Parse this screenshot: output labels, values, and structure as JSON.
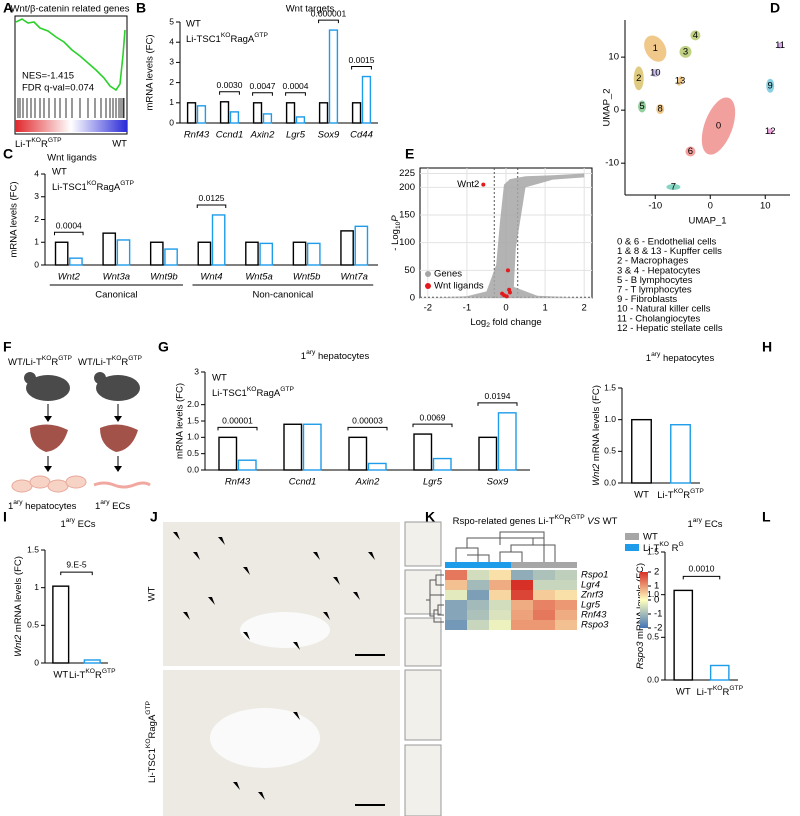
{
  "panels": {
    "A": {
      "label": "A",
      "title": "Wnt/β-catenin related genes",
      "nes": "NES=-1.415",
      "fdr": "FDR q-val=0.074",
      "left_label": [
        "Li-T",
        {
          "sup": "KO"
        },
        "R",
        {
          "sup": "GTP"
        }
      ],
      "right_label": "WT"
    },
    "B": {
      "label": "B",
      "title": "Wnt targets",
      "ylabel": "mRNA levels (FC)",
      "categories": [
        "Rnf43",
        "Ccnd1",
        "Axin2",
        "Lgr5",
        "Sox9",
        "Cd44"
      ],
      "series": [
        {
          "name": "WT",
          "color": "#000000",
          "values": [
            1.0,
            1.05,
            1.0,
            1.0,
            1.0,
            1.0
          ]
        },
        {
          "name": [
            "Li-TSC1",
            {
              "sup": "KO"
            },
            "RagA",
            {
              "sup": "GTP"
            }
          ],
          "color": "#1e9be9",
          "values": [
            0.85,
            0.55,
            0.45,
            0.3,
            4.6,
            2.3
          ]
        }
      ],
      "ylim": [
        0,
        5
      ],
      "yticks": [
        0,
        1,
        2,
        3,
        4,
        5
      ],
      "pvalues": [
        null,
        "0.0030",
        "0.0047",
        "0.0004",
        "0.000001",
        "0.0015"
      ]
    },
    "C": {
      "label": "C",
      "title": "Wnt ligands",
      "ylabel": "mRNA levels (FC)",
      "categories": [
        "Wnt2",
        "Wnt3a",
        "Wnt9b",
        "Wnt4",
        "Wnt5a",
        "Wnt5b",
        "Wnt7a"
      ],
      "series": [
        {
          "name": "WT",
          "color": "#000000",
          "values": [
            1.0,
            1.4,
            1.0,
            1.0,
            1.0,
            1.0,
            1.5
          ]
        },
        {
          "name": [
            "Li-TSC1",
            {
              "sup": "KO"
            },
            "RagA",
            {
              "sup": "GTP"
            }
          ],
          "color": "#1e9be9",
          "values": [
            0.3,
            1.1,
            0.7,
            2.2,
            0.95,
            0.95,
            1.7
          ]
        }
      ],
      "ylim": [
        0,
        4
      ],
      "yticks": [
        0,
        1,
        2,
        3,
        4
      ],
      "pvalues": [
        "0.0004",
        null,
        null,
        "0.0125",
        null,
        null,
        null
      ],
      "group_labels": [
        "Canonical",
        "Non-canonical"
      ]
    },
    "D": {
      "label": "D",
      "xlabel": "UMAP_1",
      "ylabel": "UMAP_2",
      "xlim": [
        -15.5,
        14.5
      ],
      "ylim": [
        -16,
        17
      ],
      "xticks": [
        -10,
        0,
        10
      ],
      "yticks": [
        -10,
        0,
        10
      ],
      "clusters": [
        {
          "label": "0",
          "x": 1.5,
          "y": -3,
          "color": "#e8524f"
        },
        {
          "label": "1",
          "x": -10,
          "y": 11.6,
          "color": "#e39a2a"
        },
        {
          "label": "2",
          "x": -13,
          "y": 6,
          "color": "#c6a21a"
        },
        {
          "label": "3",
          "x": -4.5,
          "y": 11,
          "color": "#8cab1e"
        },
        {
          "label": "4",
          "x": -2.7,
          "y": 14.1,
          "color": "#8cab1e"
        },
        {
          "label": "5",
          "x": -12.4,
          "y": 0.7,
          "color": "#3aa84a"
        },
        {
          "label": "6",
          "x": -3.6,
          "y": -7.8,
          "color": "#e8524f"
        },
        {
          "label": "7",
          "x": -6.7,
          "y": -14.5,
          "color": "#22b38f"
        },
        {
          "label": "8",
          "x": -9.1,
          "y": 0.2,
          "color": "#e39a2a"
        },
        {
          "label": "9",
          "x": 10.9,
          "y": 4.6,
          "color": "#27aac8"
        },
        {
          "label": "10",
          "x": -10,
          "y": 7,
          "color": "#a58fe3"
        },
        {
          "label": "11",
          "x": 12.7,
          "y": 12.2,
          "color": "#b865d8"
        },
        {
          "label": "12",
          "x": 10.9,
          "y": -4,
          "color": "#e15ac2"
        },
        {
          "label": "13",
          "x": -5.5,
          "y": 5.5,
          "color": "#e39a2a"
        }
      ],
      "legend": [
        {
          "text": "0 & 6 - Endothelial cells",
          "color": "#e8524f"
        },
        {
          "text": "1 & 8 & 13 - Kupffer cells",
          "color": "#e39a2a"
        },
        {
          "text": "2 - Macrophages",
          "color": "#c6a21a"
        },
        {
          "text": "3 & 4 - Hepatocytes",
          "color": "#8cab1e"
        },
        {
          "text": "5 - B lymphocytes",
          "color": "#3aa84a"
        },
        {
          "text": "7 - T lymphocytes",
          "color": "#22b38f"
        },
        {
          "text": "9 - Fibroblasts",
          "color": "#27aac8"
        },
        {
          "text": "10 - Natural killer cells",
          "color": "#a58fe3"
        },
        {
          "text": "11 - Cholangiocytes",
          "color": "#b865d8"
        },
        {
          "text": "12 - Hepatic stellate cells",
          "color": "#e15ac2"
        }
      ]
    },
    "E": {
      "label": "E",
      "xlabel": [
        "Log",
        {
          "sub": "2"
        },
        " fold change"
      ],
      "ylabel": [
        "- Log",
        {
          "sub": "10"
        },
        {
          "em": "P"
        }
      ],
      "xlim": [
        -2.2,
        2.2
      ],
      "ylim": [
        0,
        235
      ],
      "xticks": [
        -2,
        -1,
        0,
        1,
        2
      ],
      "yticks": [
        0,
        50,
        100,
        150,
        200,
        225
      ],
      "cutoffs": {
        "x": [
          -0.3,
          0.3
        ],
        "y": 1.3
      },
      "legend": [
        "Genes",
        "Wnt ligands"
      ],
      "colors": [
        "#a6a6a6",
        "#e31a1c"
      ],
      "ligands": {
        "x": [
          -0.58,
          0.05,
          0.1,
          -0.05,
          0.02,
          0.08,
          -0.1
        ],
        "y": [
          205,
          50,
          10,
          5,
          3,
          15,
          8
        ]
      },
      "annotation": "Wnt2"
    },
    "F": {
      "label": "F",
      "groups": [
        [
          "WT/Li-T",
          {
            "sup": "KO"
          },
          "R",
          {
            "sup": "GTP"
          }
        ],
        [
          "WT/Li-T",
          {
            "sup": "KO"
          },
          "R",
          {
            "sup": "GTP"
          }
        ]
      ],
      "cells": [
        [
          "1",
          {
            "sup": "ary"
          },
          " hepatocytes"
        ],
        [
          "1",
          {
            "sup": "ary"
          },
          " ECs"
        ]
      ]
    },
    "G": {
      "label": "G",
      "title": [
        "1",
        {
          "sup": "ary"
        },
        " hepatocytes"
      ],
      "ylabel": "mRNA levels (FC)",
      "categories": [
        "Rnf43",
        "Ccnd1",
        "Axin2",
        "Lgr5",
        "Sox9"
      ],
      "series": [
        {
          "name": "WT",
          "color": "#000000",
          "values": [
            1.0,
            1.4,
            1.0,
            1.1,
            1.0
          ]
        },
        {
          "name": [
            "Li-TSC1",
            {
              "sup": "KO"
            },
            "RagA",
            {
              "sup": "GTP"
            }
          ],
          "color": "#1e9be9",
          "values": [
            0.3,
            1.4,
            0.2,
            0.35,
            1.75
          ]
        }
      ],
      "ylim": [
        0,
        3
      ],
      "yticks": [
        {
          "value": 0,
          "label": "0.0"
        },
        0.5,
        {
          "value": 1,
          "label": "1.0"
        },
        1.5,
        {
          "value": 2,
          "label": "2.0"
        },
        3
      ],
      "pvalues": [
        "0.00001",
        null,
        "0.00003",
        "0.0069",
        "0.0194"
      ]
    },
    "H": {
      "label": "H",
      "title": [
        "1",
        {
          "sup": "ary"
        },
        " hepatocytes"
      ],
      "ylabel": [
        {
          "em": "Wnt2"
        },
        " mRNA levels (FC)"
      ],
      "categories": [
        "WT",
        [
          "Li-T",
          {
            "sup": "KO"
          },
          "R",
          {
            "sup": "GTP"
          }
        ]
      ],
      "series": [
        {
          "colors": [
            "#000000",
            "#1e9be9"
          ],
          "values": [
            1.0,
            0.92
          ]
        }
      ],
      "ylim": [
        0,
        1.5
      ],
      "yticks": [
        {
          "value": 0,
          "label": "0.0"
        },
        0.5,
        {
          "value": 1,
          "label": "1.0"
        },
        1.5
      ]
    },
    "I": {
      "label": "I",
      "title": [
        "1",
        {
          "sup": "ary"
        },
        " ECs"
      ],
      "ylabel": [
        {
          "em": "Wnt2"
        },
        " mRNA levels (FC)"
      ],
      "categories": [
        "WT",
        [
          "Li-T",
          {
            "sup": "KO"
          },
          "R",
          {
            "sup": "GTP"
          }
        ]
      ],
      "series": [
        {
          "colors": [
            "#000000",
            "#1e9be9"
          ],
          "values": [
            1.02,
            0.04
          ]
        }
      ],
      "ylim": [
        0,
        1.5
      ],
      "yticks": [
        0,
        0.5,
        1,
        1.5
      ],
      "pvalue": "9.E-5"
    },
    "J": {
      "label": "J",
      "rows": [
        "WT",
        [
          "Li-TSC1",
          {
            "sup": "KO"
          },
          "RagA",
          {
            "sup": "GTP"
          }
        ]
      ]
    },
    "K": {
      "label": "K",
      "title": [
        "Rspo-related genes Li-T",
        {
          "sup": "KO"
        },
        "R",
        {
          "sup": "GTP"
        },
        " ",
        {
          "em": "VS"
        },
        " WT"
      ],
      "legend": [
        {
          "name": "WT",
          "color": "#a6a6a6"
        },
        {
          "name": [
            "Li-T",
            {
              "sup": "KO"
            },
            " R",
            {
              "sup": "G"
            }
          ],
          "color": "#1e9be9"
        }
      ],
      "column_groups": [
        "#1e9be9",
        "#1e9be9",
        "#1e9be9",
        "#a6a6a6",
        "#a6a6a6",
        "#a6a6a6"
      ],
      "genes": [
        "Rspo1",
        "Lgr4",
        "Znrf3",
        "Lgr5",
        "Rnf43",
        "Rspo3"
      ],
      "values": [
        [
          1.3,
          -0.5,
          0.3,
          -1.2,
          -0.9,
          -0.7
        ],
        [
          0.6,
          -1.0,
          0.8,
          2.0,
          -0.6,
          -0.6
        ],
        [
          -0.3,
          -1.4,
          0.4,
          1.8,
          0.5,
          0.3
        ],
        [
          -1.3,
          -1.0,
          -0.5,
          0.8,
          1.2,
          1.0
        ],
        [
          -1.3,
          -0.9,
          -0.4,
          0.9,
          1.3,
          0.8
        ],
        [
          -1.5,
          -0.6,
          -0.2,
          1.0,
          1.0,
          0.6
        ]
      ],
      "clim": [
        -2,
        2
      ],
      "cticks": [
        2,
        1,
        0,
        -1,
        -2
      ],
      "colormap": [
        "#4575b4",
        "#ffffbf",
        "#d73027"
      ]
    },
    "L": {
      "label": "L",
      "title": [
        "1",
        {
          "sup": "ary"
        },
        " ECs"
      ],
      "ylabel": [
        {
          "em": "Rspo3"
        },
        " mRNA levels (FC)"
      ],
      "categories": [
        "WT",
        [
          "Li-T",
          {
            "sup": "KO"
          },
          "R",
          {
            "sup": "GTP"
          }
        ]
      ],
      "series": [
        {
          "colors": [
            "#000000",
            "#1e9be9"
          ],
          "values": [
            1.05,
            0.17
          ]
        }
      ],
      "ylim": [
        0,
        1.5
      ],
      "yticks": [
        {
          "value": 0,
          "label": "0.0"
        },
        0.5,
        {
          "value": 1,
          "label": "1.0"
        },
        1.5
      ],
      "pvalue": "0.0010"
    }
  }
}
